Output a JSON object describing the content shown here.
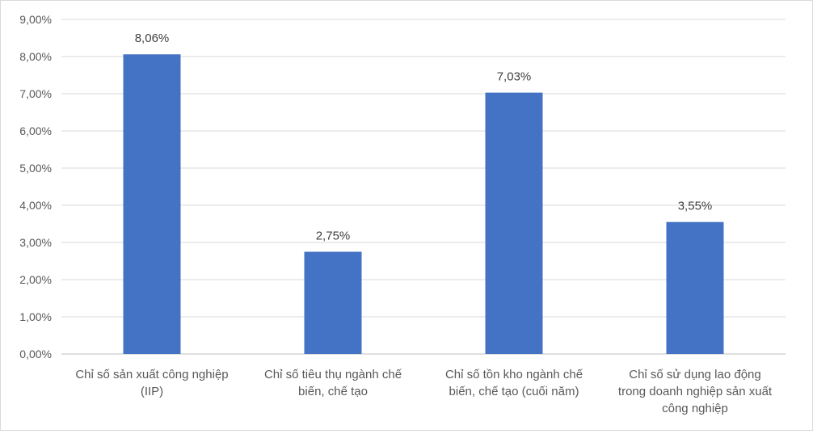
{
  "chart_data": {
    "type": "bar",
    "title": "",
    "xlabel": "",
    "ylabel": "",
    "ylim": [
      0,
      9
    ],
    "y_ticks": [
      "0,00%",
      "1,00%",
      "2,00%",
      "3,00%",
      "4,00%",
      "5,00%",
      "6,00%",
      "7,00%",
      "8,00%",
      "9,00%"
    ],
    "grid": true,
    "bar_color": "#4472C4",
    "categories": [
      [
        "Chỉ số sản xuất công nghiệp",
        "(IIP)"
      ],
      [
        "Chỉ số tiêu thụ ngành chế",
        "biến, chế tạo"
      ],
      [
        "Chỉ số tồn kho ngành chế",
        "biến, chế tạo (cuối năm)"
      ],
      [
        "Chỉ số sử dụng lao động",
        "trong doanh nghiệp sản xuất",
        "công nghiệp"
      ]
    ],
    "values": [
      8.06,
      2.75,
      7.03,
      3.55
    ],
    "data_labels": [
      "8,06%",
      "2,75%",
      "7,03%",
      "3,55%"
    ]
  }
}
